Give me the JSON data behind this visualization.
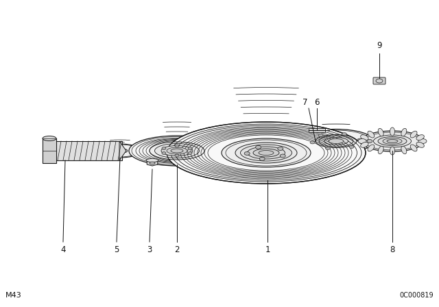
{
  "background_color": "#ffffff",
  "fig_width": 6.4,
  "fig_height": 4.48,
  "dpi": 100,
  "bottom_left_text": "M43",
  "bottom_right_text": "0C000819",
  "label_fontsize": 8.5,
  "edge_color": "#1a1a1a",
  "fill_light": "#f5f5f5",
  "fill_mid": "#e0e0e0",
  "fill_dark": "#c8c8c8"
}
